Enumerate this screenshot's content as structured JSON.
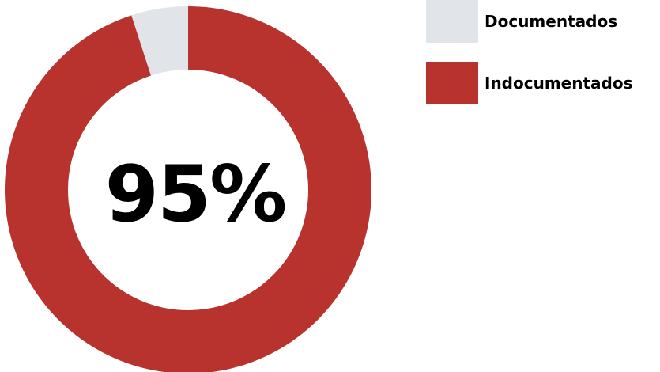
{
  "chart_data": {
    "type": "pie",
    "donut": true,
    "center_label": "95%",
    "slices": [
      {
        "label": "Indocumentados",
        "value": 95,
        "color": "#b8332e"
      },
      {
        "label": "Documentados",
        "value": 5,
        "color": "#e1e4e8"
      }
    ],
    "start_angle_deg": 0,
    "direction": "clockwise",
    "legend": {
      "position": "top-right",
      "items": [
        {
          "label": "Documentados",
          "color": "#e1e4e8"
        },
        {
          "label": "Indocumentados",
          "color": "#b8332e"
        }
      ]
    }
  },
  "colors": {
    "text": "#000000",
    "background": "#ffffff"
  }
}
